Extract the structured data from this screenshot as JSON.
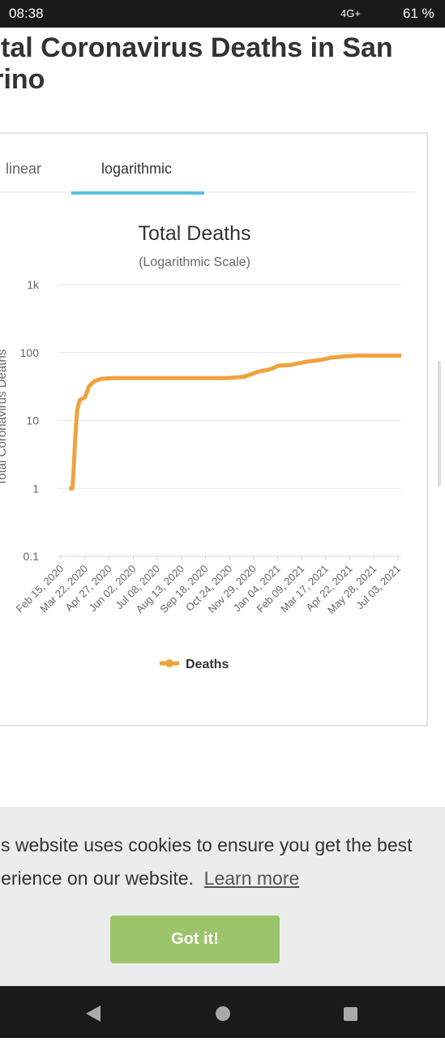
{
  "status_bar": {
    "time": "08:38",
    "network": "4G+",
    "battery": "61 %"
  },
  "page": {
    "heading": [
      "Total Coronavirus Deaths in San",
      "Marino"
    ]
  },
  "tabs": [
    "linear",
    "logarithmic"
  ],
  "chart_data": {
    "type": "line",
    "title": "Total Deaths",
    "subtitle": "(Logarithmic Scale)",
    "y_label": "Total Coronavirus Deaths",
    "log_scale": true,
    "grid": true,
    "legend": "bottom",
    "x": [
      "2020-02-27",
      "2020-03-03",
      "2020-03-05",
      "2020-03-07",
      "2020-03-10",
      "2020-03-14",
      "2020-03-22",
      "2020-03-28",
      "2020-04-05",
      "2020-04-15",
      "2020-05-01",
      "2020-06-01",
      "2020-10-20",
      "2020-11-15",
      "2020-12-05",
      "2020-12-25",
      "2021-01-05",
      "2021-01-25",
      "2021-02-15",
      "2021-03-10",
      "2021-03-25",
      "2021-04-15",
      "2021-05-01",
      "2021-06-01",
      "2021-07-08"
    ],
    "series": [
      {
        "name": "Deaths",
        "color": "#f0a23c",
        "values": [
          1,
          1,
          2,
          5,
          14,
          20,
          22,
          32,
          38,
          41,
          42,
          42,
          42,
          44,
          52,
          57,
          64,
          66,
          73,
          78,
          84,
          88,
          90,
          90,
          90
        ]
      }
    ],
    "xlim": [
      "2020-02-11",
      "2021-07-08"
    ],
    "xticks": [
      {
        "value": "2020-02-15",
        "label": "Feb 15, 2020"
      },
      {
        "value": "2020-03-22",
        "label": "Mar 22, 2020"
      },
      {
        "value": "2020-04-27",
        "label": "Apr 27, 2020"
      },
      {
        "value": "2020-06-02",
        "label": "Jun 02, 2020"
      },
      {
        "value": "2020-07-08",
        "label": "Jul 08, 2020"
      },
      {
        "value": "2020-08-13",
        "label": "Aug 13, 2020"
      },
      {
        "value": "2020-09-18",
        "label": "Sep 18, 2020"
      },
      {
        "value": "2020-10-24",
        "label": "Oct 24, 2020"
      },
      {
        "value": "2020-11-29",
        "label": "Nov 29, 2020"
      },
      {
        "value": "2021-01-04",
        "label": "Jan 04, 2021"
      },
      {
        "value": "2021-02-09",
        "label": "Feb 09, 2021"
      },
      {
        "value": "2021-03-17",
        "label": "Mar 17, 2021"
      },
      {
        "value": "2021-04-22",
        "label": "Apr 22, 2021"
      },
      {
        "value": "2021-05-28",
        "label": "May 28, 2021"
      },
      {
        "value": "2021-07-03",
        "label": "Jul 03, 2021"
      }
    ],
    "ylim": [
      0.1,
      1000
    ],
    "yticks": [
      0.1,
      1,
      10,
      100,
      {
        "value": 1000,
        "label": "1k"
      }
    ]
  },
  "cookie": {
    "message": [
      "This website uses cookies to ensure you get the best",
      "experience on our website."
    ],
    "link": "Learn more",
    "button": "Got it!"
  }
}
